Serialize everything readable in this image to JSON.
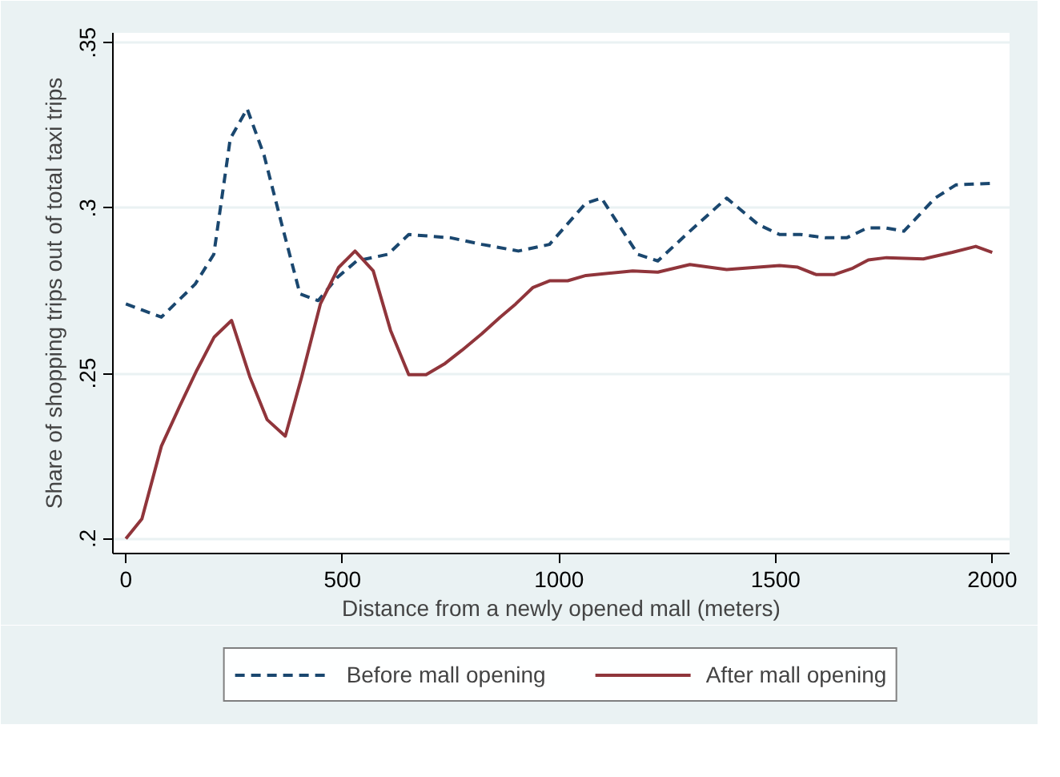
{
  "chart_data": {
    "type": "line",
    "xlabel": "Distance from a newly opened mall (meters)",
    "ylabel": "Share of shopping trips out of total taxi trips",
    "xlim": [
      -30,
      2040
    ],
    "ylim": [
      0.1955,
      0.353
    ],
    "xticks": [
      0,
      500,
      1000,
      1500,
      2000
    ],
    "yticks": [
      {
        "value": 0.2,
        "label": ".2"
      },
      {
        "value": 0.25,
        "label": ".25"
      },
      {
        "value": 0.3,
        "label": ".3"
      },
      {
        "value": 0.35,
        "label": ".35"
      }
    ],
    "grid": "y",
    "legend": "bottom",
    "series": [
      {
        "name": "Before mall opening",
        "color": "#1a476f",
        "line_style": "dashed",
        "x": [
          0,
          82,
          160,
          203,
          241,
          280,
          319,
          362,
          402,
          444,
          488,
          533,
          605,
          653,
          750,
          822,
          906,
          978,
          1062,
          1098,
          1182,
          1228,
          1302,
          1387,
          1460,
          1509,
          1557,
          1616,
          1664,
          1712,
          1754,
          1796,
          1868,
          1916,
          2000
        ],
        "values": [
          0.271,
          0.267,
          0.277,
          0.286,
          0.321,
          0.33,
          0.316,
          0.294,
          0.274,
          0.272,
          0.279,
          0.284,
          0.286,
          0.292,
          0.291,
          0.289,
          0.287,
          0.289,
          0.3015,
          0.303,
          0.286,
          0.284,
          0.293,
          0.303,
          0.295,
          0.292,
          0.292,
          0.291,
          0.291,
          0.294,
          0.294,
          0.293,
          0.303,
          0.307,
          0.3075
        ]
      },
      {
        "name": "After mall opening",
        "color": "#90353b",
        "line_style": "solid",
        "x": [
          0,
          37,
          82,
          124,
          164,
          204,
          244,
          286,
          326,
          368,
          406,
          449,
          491,
          529,
          571,
          611,
          653,
          693,
          737,
          776,
          822,
          864,
          900,
          940,
          978,
          1020,
          1062,
          1170,
          1228,
          1302,
          1387,
          1460,
          1509,
          1551,
          1593,
          1636,
          1678,
          1714,
          1756,
          1841,
          1908,
          1962,
          2000
        ],
        "values": [
          0.2,
          0.206,
          0.228,
          0.24,
          0.251,
          0.261,
          0.266,
          0.249,
          0.236,
          0.231,
          0.249,
          0.271,
          0.282,
          0.287,
          0.281,
          0.263,
          0.2496,
          0.2496,
          0.253,
          0.257,
          0.262,
          0.267,
          0.271,
          0.276,
          0.278,
          0.278,
          0.2796,
          0.281,
          0.2806,
          0.2829,
          0.2814,
          0.2821,
          0.2826,
          0.2821,
          0.2799,
          0.2799,
          0.2818,
          0.2843,
          0.285,
          0.2846,
          0.2866,
          0.2884,
          0.2866
        ]
      }
    ]
  }
}
